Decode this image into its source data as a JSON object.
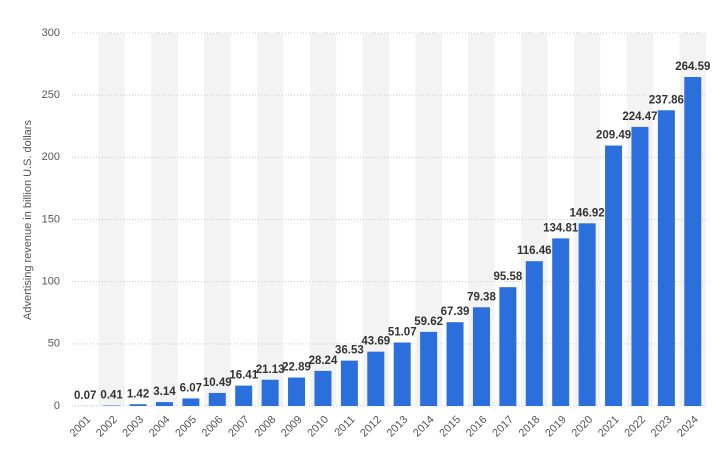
{
  "chart_data": {
    "type": "bar",
    "y_label": "Advertising revenue in billion U.S. dollars",
    "categories": [
      "2001",
      "2002",
      "2003",
      "2004",
      "2005",
      "2006",
      "2007",
      "2008",
      "2009",
      "2010",
      "2011",
      "2012",
      "2013",
      "2014",
      "2015",
      "2016",
      "2017",
      "2018",
      "2019",
      "2020",
      "2021",
      "2022",
      "2023",
      "2024"
    ],
    "values": [
      0.07,
      0.41,
      1.42,
      3.14,
      6.07,
      10.49,
      16.41,
      21.13,
      22.89,
      28.24,
      36.53,
      43.69,
      51.07,
      59.62,
      67.39,
      79.38,
      95.58,
      116.46,
      134.81,
      146.92,
      209.49,
      224.47,
      237.86,
      264.59
    ],
    "color": "#2a6fdb",
    "ylim": [
      0,
      300
    ],
    "yticks": [
      0,
      50,
      100,
      150,
      200,
      250,
      300
    ],
    "grid": true
  }
}
